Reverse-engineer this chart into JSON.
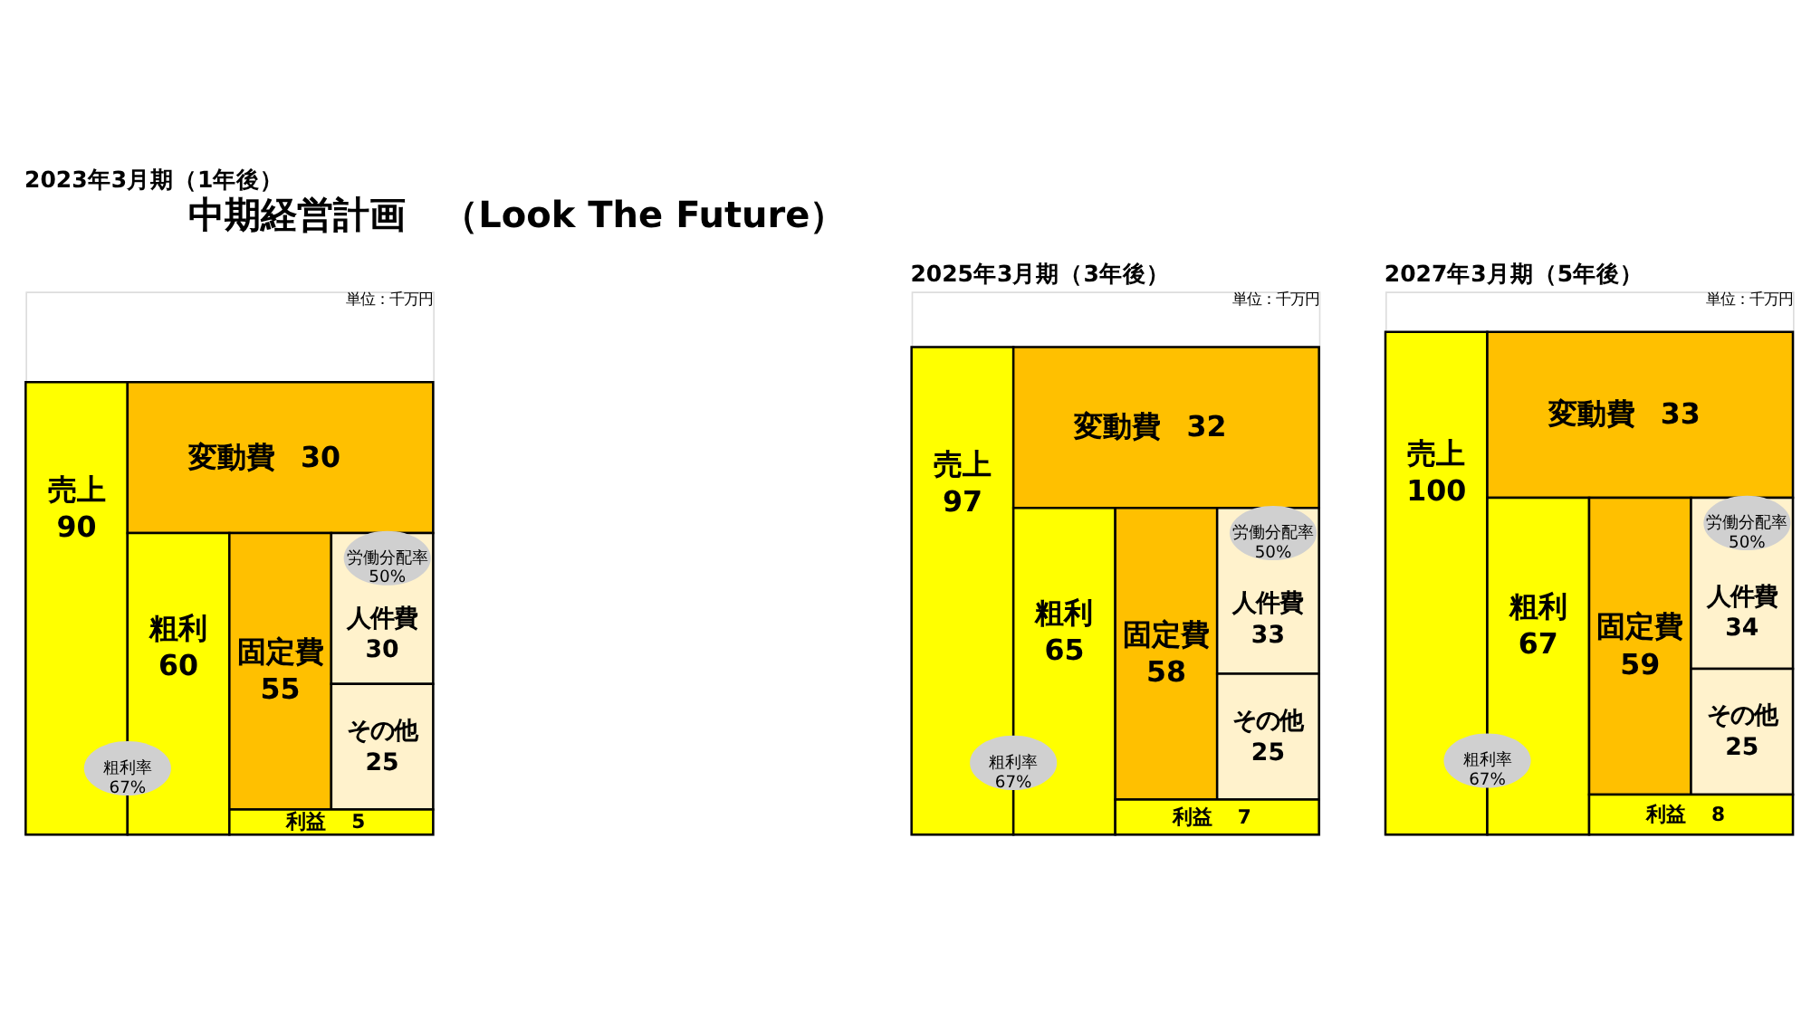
{
  "chart_data": [
    {
      "type": "other",
      "title": "中期経営計画　（Look The Future）",
      "subtitle": "2023年3月期（1年後）",
      "data_labels": true,
      "annotations": [
        "単位：千万円",
        "粗利率\n67%",
        "労働分配率\n50%"
      ],
      "categories": [
        "売上",
        "変動費",
        "粗利",
        "固定費",
        "人件費",
        "その他",
        "利益"
      ],
      "values": [
        90,
        30,
        60,
        55,
        30,
        25,
        5
      ],
      "colors": [
        "#ffff00",
        "#ffc000",
        "#ffff00",
        "#ffc000",
        "#fff2cc",
        "#fff2cc",
        "#ffff00"
      ]
    },
    {
      "type": "other",
      "subtitle": "2025年3月期（3年後）",
      "data_labels": true,
      "annotations": [
        "単位：千万円",
        "粗利率\n67%",
        "労働分配率\n50%"
      ],
      "categories": [
        "売上",
        "変動費",
        "粗利",
        "固定費",
        "人件費",
        "その他",
        "利益"
      ],
      "values": [
        97,
        32,
        65,
        58,
        33,
        25,
        7
      ],
      "colors": [
        "#ffff00",
        "#ffc000",
        "#ffff00",
        "#ffc000",
        "#fff2cc",
        "#fff2cc",
        "#ffff00"
      ]
    },
    {
      "type": "other",
      "subtitle": "2027年3月期（5年後）",
      "data_labels": true,
      "annotations": [
        "単位：千万円",
        "粗利率\n67%",
        "労働分配率\n50%"
      ],
      "categories": [
        "売上",
        "変動費",
        "粗利",
        "固定費",
        "人件費",
        "その他",
        "利益"
      ],
      "values": [
        100,
        33,
        67,
        59,
        34,
        25,
        8
      ],
      "colors": [
        "#ffff00",
        "#ffc000",
        "#ffff00",
        "#ffc000",
        "#fff2cc",
        "#fff2cc",
        "#ffff00"
      ]
    }
  ]
}
